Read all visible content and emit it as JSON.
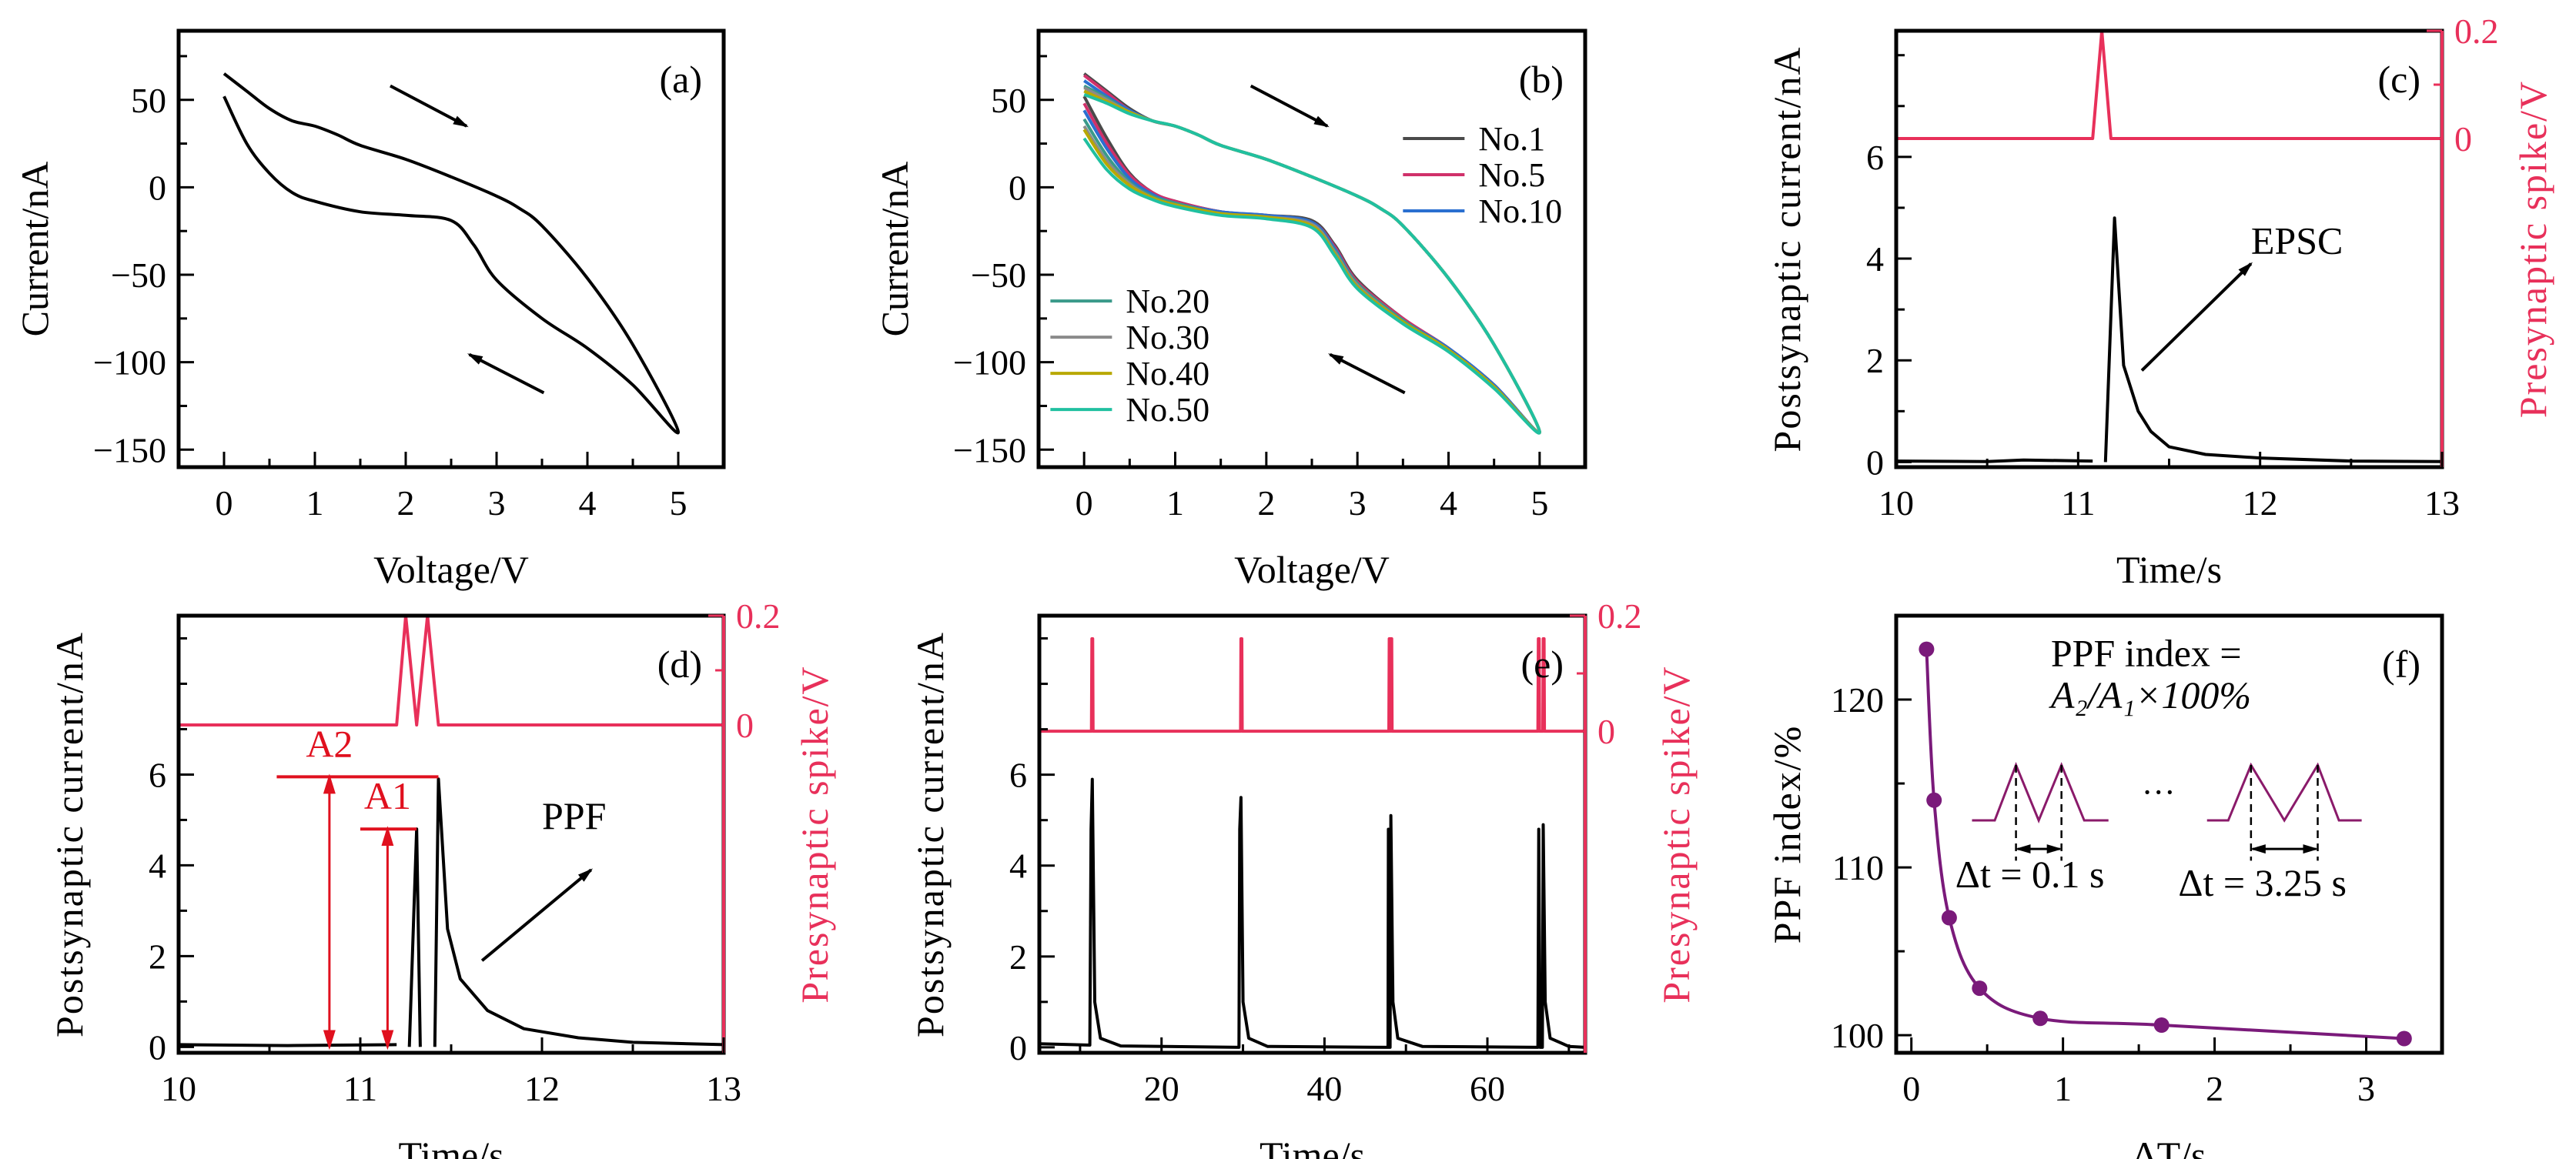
{
  "chart_data": [
    {
      "id": "a",
      "type": "line",
      "panel_label": "(a)",
      "xlabel": "Voltage/V",
      "ylabel": "Current/nA",
      "xlim": [
        -0.5,
        5.5
      ],
      "ylim": [
        -160,
        89.5
      ],
      "xticks": [
        0,
        1,
        2,
        3,
        4,
        5
      ],
      "yticks": [
        -150,
        -100,
        -50,
        0,
        50
      ],
      "ytick_labels": [
        "−150",
        "−100",
        "−50",
        "0",
        "50"
      ],
      "series": [
        {
          "color": "#000000",
          "x": [
            0,
            0.25,
            0.5,
            0.75,
            1,
            1.25,
            1.5,
            2,
            2.5,
            3,
            3.25,
            3.5,
            4,
            4.5,
            5,
            4.5,
            4,
            3.5,
            3,
            2.75,
            2.5,
            2,
            1.5,
            1,
            0.75,
            0.5,
            0.25,
            0
          ],
          "y": [
            65,
            55,
            45,
            38,
            35,
            30,
            24,
            16,
            6,
            -5,
            -12,
            -22,
            -52,
            -90,
            -140,
            -113,
            -92,
            -75,
            -53,
            -33,
            -19,
            -16,
            -14,
            -8,
            -3,
            8,
            25,
            52
          ]
        }
      ],
      "arrows": [
        {
          "from": [
            1.83,
            58
          ],
          "to": [
            2.67,
            35
          ]
        },
        {
          "from": [
            3.52,
            -117.5
          ],
          "to": [
            2.7,
            -95.6
          ]
        }
      ]
    },
    {
      "id": "b",
      "type": "line",
      "panel_label": "(b)",
      "xlabel": "Voltage/V",
      "ylabel": "Current/nA",
      "xlim": [
        -0.5,
        5.5
      ],
      "ylim": [
        -160,
        89.5
      ],
      "xticks": [
        0,
        1,
        2,
        3,
        4,
        5
      ],
      "yticks": [
        -150,
        -100,
        -50,
        0,
        50
      ],
      "ytick_labels": [
        "−150",
        "−100",
        "−50",
        "0",
        "50"
      ],
      "x": [
        0,
        0.25,
        0.5,
        0.75,
        1,
        1.25,
        1.5,
        2,
        2.5,
        3,
        3.25,
        3.5,
        4,
        4.5,
        5,
        4.5,
        4,
        3.5,
        3,
        2.75,
        2.5,
        2,
        1.5,
        1,
        0.75,
        0.5,
        0.25,
        0
      ],
      "series": [
        {
          "name": "No.1",
          "color": "#4a4a4a",
          "y": [
            65,
            55,
            45,
            38,
            35,
            30,
            24,
            16,
            6,
            -5,
            -12,
            -22,
            -52,
            -90,
            -140,
            -113,
            -92,
            -75,
            -53,
            -33,
            -19,
            -16,
            -14,
            -8,
            -3,
            8,
            28,
            52
          ]
        },
        {
          "name": "No.5",
          "color": "#d0306a",
          "y": [
            64,
            54,
            44,
            38,
            35,
            30,
            24,
            16,
            6,
            -5,
            -12,
            -22,
            -52,
            -90,
            -140,
            -113,
            -92,
            -75,
            -54,
            -34,
            -20,
            -16,
            -14,
            -8,
            -3,
            7,
            25,
            48
          ]
        },
        {
          "name": "No.10",
          "color": "#2a6fd0",
          "y": [
            61,
            52,
            44,
            38,
            35,
            30,
            24,
            16,
            6,
            -5,
            -12,
            -22,
            -52,
            -90,
            -140,
            -113,
            -92,
            -76,
            -55,
            -35,
            -20,
            -16,
            -14,
            -9,
            -4,
            5,
            22,
            44
          ]
        },
        {
          "name": "No.20",
          "color": "#3a9a8a",
          "y": [
            58,
            51,
            43,
            38,
            35,
            30,
            24,
            16,
            6,
            -5,
            -12,
            -22,
            -52,
            -90,
            -140,
            -114,
            -93,
            -76,
            -55,
            -36,
            -21,
            -17,
            -15,
            -9,
            -5,
            3,
            18,
            39
          ]
        },
        {
          "name": "No.30",
          "color": "#8a8a8a",
          "y": [
            57,
            50,
            43,
            38,
            35,
            30,
            24,
            16,
            6,
            -5,
            -12,
            -22,
            -52,
            -90,
            -140,
            -114,
            -93,
            -77,
            -56,
            -37,
            -21,
            -17,
            -15,
            -10,
            -6,
            2,
            15,
            35
          ]
        },
        {
          "name": "No.40",
          "color": "#b8a800",
          "y": [
            55,
            49,
            43,
            38,
            35,
            30,
            24,
            16,
            6,
            -5,
            -12,
            -22,
            -52,
            -90,
            -140,
            -114,
            -93,
            -77,
            -57,
            -38,
            -22,
            -17,
            -15,
            -10,
            -6,
            1,
            13,
            33
          ]
        },
        {
          "name": "No.50",
          "color": "#20c0a0",
          "y": [
            53,
            48,
            42,
            38,
            35,
            30,
            24,
            16,
            6,
            -5,
            -12,
            -22,
            -52,
            -90,
            -140,
            -115,
            -94,
            -78,
            -58,
            -39,
            -23,
            -18,
            -16,
            -11,
            -7,
            -1,
            10,
            28
          ]
        }
      ],
      "legend_groups": [
        [
          "No.1",
          "No.5",
          "No.10"
        ],
        [
          "No.20",
          "No.30",
          "No.40",
          "No.50"
        ]
      ],
      "arrows": [
        {
          "from": [
            1.83,
            58
          ],
          "to": [
            2.67,
            35
          ]
        },
        {
          "from": [
            3.52,
            -117.5
          ],
          "to": [
            2.7,
            -95.6
          ]
        }
      ]
    },
    {
      "id": "c",
      "type": "line",
      "panel_label": "(c)",
      "xlabel": "Time/s",
      "ylabel": "Postsynaptic current/nA",
      "ylabel_right": "Presynaptic spike/V",
      "xlim": [
        10,
        13
      ],
      "ylim": [
        -0.1,
        8.48
      ],
      "ylim_right": [
        -0.61,
        0.2
      ],
      "xticks": [
        10,
        11,
        12,
        13
      ],
      "yticks": [
        0,
        2,
        4,
        6
      ],
      "yticks_right": [
        0,
        0.2
      ],
      "ytick_labels_right": [
        "0",
        "0.2"
      ],
      "series": [
        {
          "axis": "left",
          "color": "#000000",
          "x": [
            10,
            10.5,
            10.7,
            11.08
          ],
          "y": [
            0.02,
            0.01,
            0.04,
            0.02
          ]
        },
        {
          "axis": "left",
          "color": "#000000",
          "x": [
            11.15,
            11.2,
            11.25,
            11.33,
            11.4,
            11.5,
            11.7,
            12,
            12.5,
            13
          ],
          "y": [
            0,
            4.8,
            1.9,
            1.0,
            0.6,
            0.3,
            0.15,
            0.08,
            0.02,
            0.01
          ]
        },
        {
          "axis": "right",
          "color": "#e8305a",
          "x": [
            10,
            11.08,
            11.13,
            11.18,
            13
          ],
          "y": [
            0,
            0,
            0.2,
            0,
            0
          ]
        }
      ],
      "texts": [
        {
          "text": "EPSC",
          "at": [
            11.95,
            4.1
          ]
        }
      ],
      "arrows": [
        {
          "from": [
            11.35,
            1.8
          ],
          "to": [
            11.95,
            3.9
          ]
        }
      ]
    },
    {
      "id": "d",
      "type": "line",
      "panel_label": "(d)",
      "xlabel": "Time/s",
      "ylabel": "Postsynaptic current/nA",
      "ylabel_right": "Presynaptic spike/V",
      "xlim": [
        10,
        13
      ],
      "ylim": [
        -0.13,
        9.5
      ],
      "ylim_right": [
        -0.6,
        0.2
      ],
      "xticks": [
        10,
        11,
        12,
        13
      ],
      "yticks": [
        0,
        2,
        4,
        6
      ],
      "yticks_right": [
        0,
        0.2
      ],
      "ytick_labels_right": [
        "0",
        "0.2"
      ],
      "series": [
        {
          "axis": "left",
          "color": "#000000",
          "x": [
            10,
            10.6,
            11.2
          ],
          "y": [
            0.05,
            0.03,
            0.05
          ]
        },
        {
          "axis": "left",
          "color": "#000000",
          "x": [
            11.27,
            11.31,
            11.33
          ],
          "y": [
            0,
            4.8,
            0
          ]
        },
        {
          "axis": "left",
          "color": "#000000",
          "x": [
            11.41,
            11.43,
            11.48,
            11.55,
            11.7,
            11.9,
            12.2,
            12.5,
            13
          ],
          "y": [
            0,
            5.9,
            2.6,
            1.5,
            0.8,
            0.4,
            0.2,
            0.1,
            0.05
          ]
        },
        {
          "axis": "right",
          "color": "#e8305a",
          "x": [
            10,
            11.2,
            11.25,
            11.31,
            11.37,
            11.43,
            13
          ],
          "y": [
            0,
            0,
            0.2,
            0,
            0.2,
            0,
            0
          ]
        }
      ],
      "markers": [
        {
          "label": "A2",
          "level": 5.95,
          "x_from": 10.54,
          "x_to": 11.43,
          "arrow_x": 10.83,
          "color": "#e0101e"
        },
        {
          "label": "A1",
          "level": 4.8,
          "x_from": 11.0,
          "x_to": 11.31,
          "arrow_x": 11.15,
          "color": "#e0101e"
        }
      ],
      "texts": [
        {
          "text": "PPF",
          "at": [
            12.0,
            4.8
          ]
        }
      ],
      "arrows": [
        {
          "from": [
            11.67,
            1.9
          ],
          "to": [
            12.27,
            3.9
          ]
        }
      ]
    },
    {
      "id": "e",
      "type": "line",
      "panel_label": "(e)",
      "xlabel": "Time/s",
      "ylabel": "Postsynaptic current/nA",
      "ylabel_right": "Presynaptic spike/V",
      "xlim": [
        5,
        72
      ],
      "ylim": [
        -0.12,
        9.5
      ],
      "ylim_right": [
        -0.557,
        0.2
      ],
      "xticks": [
        20,
        40,
        60
      ],
      "yticks": [
        0,
        2,
        4,
        6
      ],
      "yticks_right": [
        0,
        0.2
      ],
      "ytick_labels_right": [
        "0",
        "0.2"
      ],
      "series": [
        {
          "axis": "left",
          "color": "#000000",
          "x": [
            5,
            11.2,
            11.35,
            11.5,
            11.8,
            12.5,
            15,
            29.5,
            29.6,
            29.75,
            30.0,
            30.7,
            33,
            47.8,
            47.85,
            47.95,
            48.05,
            48.15,
            48.4,
            49,
            52,
            66.2,
            66.3,
            66.45,
            66.75,
            66.85,
            67.1,
            67.7,
            70,
            72
          ],
          "y": [
            0.08,
            0.05,
            4.8,
            5.9,
            1.0,
            0.2,
            0.03,
            0,
            4.8,
            5.5,
            1.0,
            0.2,
            0.02,
            0,
            4.8,
            0,
            0,
            5.1,
            1.0,
            0.2,
            0.02,
            0,
            4.8,
            0,
            0,
            4.9,
            1.0,
            0.2,
            0.02,
            0
          ]
        },
        {
          "axis": "right",
          "color": "#e8305a",
          "x": [
            5,
            11.4,
            11.45,
            11.55,
            11.6,
            29.7,
            29.75,
            29.85,
            29.9,
            47.9,
            47.95,
            48.05,
            48.1,
            48.15,
            48.25,
            48.3,
            66.2,
            66.25,
            66.35,
            66.4,
            66.8,
            66.85,
            66.95,
            67.0,
            72
          ],
          "y": [
            0,
            0,
            0.16,
            0.16,
            0,
            0,
            0.16,
            0.16,
            0,
            0,
            0.16,
            0.16,
            0,
            0.16,
            0.16,
            0,
            0,
            0.16,
            0.16,
            0,
            0,
            0.16,
            0.16,
            0,
            0
          ]
        }
      ]
    },
    {
      "id": "f",
      "type": "line",
      "panel_label": "(f)",
      "xlabel": "ΔT/s",
      "ylabel": "PPF index/%",
      "xlim": [
        -0.1,
        3.5
      ],
      "ylim": [
        98.95,
        125
      ],
      "xticks": [
        0,
        1,
        2,
        3
      ],
      "yticks": [
        100,
        110,
        120
      ],
      "series": [
        {
          "color": "#7a1a7a",
          "markers": true,
          "x": [
            0.1,
            0.15,
            0.25,
            0.45,
            0.85,
            1.65,
            3.25
          ],
          "y": [
            123,
            114,
            107,
            102.8,
            101,
            100.6,
            99.8
          ]
        }
      ],
      "formula_line1": "PPF index =",
      "formula_line2": "A₂/A₁×100%",
      "inset": {
        "ellipsis": "···",
        "dt_short": "Δt = 0.1 s",
        "dt_long": "Δt = 3.25 s",
        "pulse_color": "#8a1a6a"
      }
    }
  ]
}
